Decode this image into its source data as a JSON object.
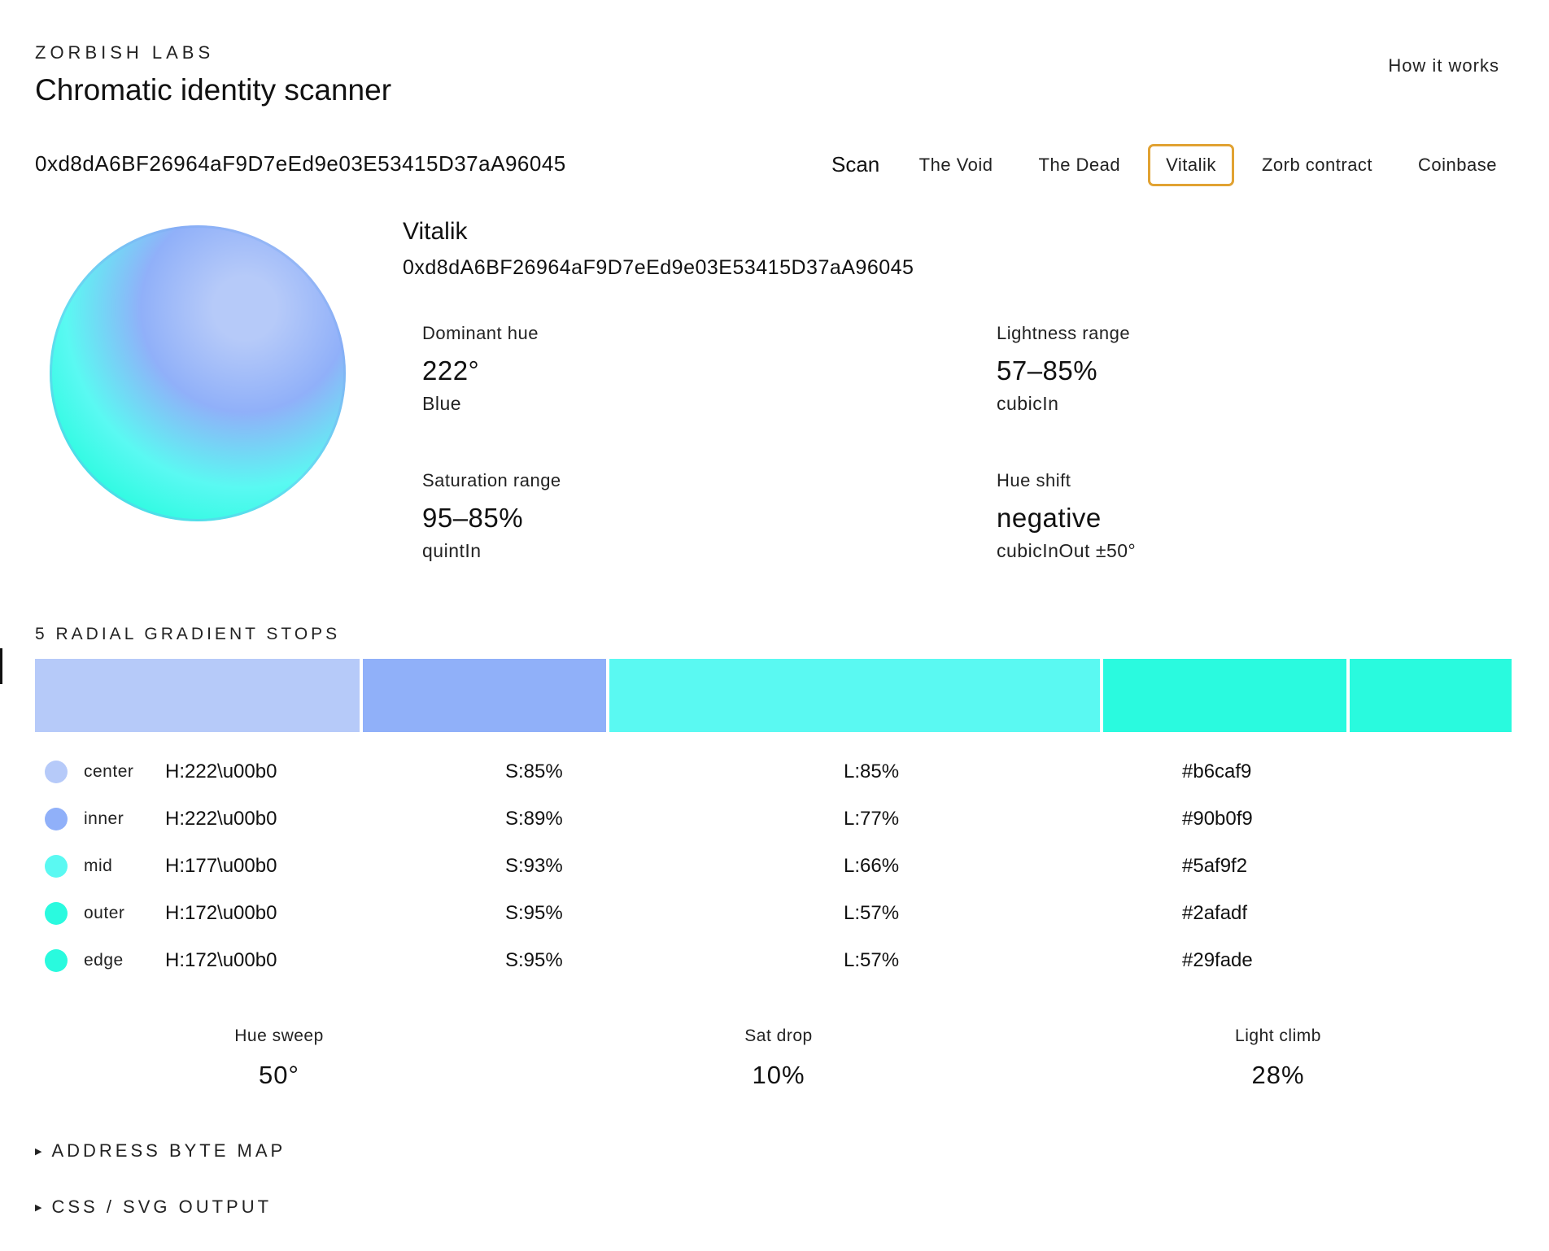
{
  "header": {
    "brand": "ZORBISH LABS",
    "title": "Chromatic identity scanner",
    "how_it_works": "How it works"
  },
  "scan": {
    "address_value": "0xd8dA6BF26964aF9D7eEd9e03E53415D37aA96045",
    "button_label": "Scan"
  },
  "presets": [
    {
      "label": "The Void",
      "active": false
    },
    {
      "label": "The Dead",
      "active": false
    },
    {
      "label": "Vitalik",
      "active": true
    },
    {
      "label": "Zorb contract",
      "active": false
    },
    {
      "label": "Coinbase",
      "active": false
    }
  ],
  "profile": {
    "name": "Vitalik",
    "address": "0xd8dA6BF26964aF9D7eEd9e03E53415D37aA96045"
  },
  "stats": {
    "dominant_hue": {
      "label": "Dominant hue",
      "value": "222°",
      "sub": "Blue"
    },
    "lightness_range": {
      "label": "Lightness range",
      "value": "57–85%",
      "sub": "cubicIn"
    },
    "saturation_range": {
      "label": "Saturation range",
      "value": "95–85%",
      "sub": "quintIn"
    },
    "hue_shift": {
      "label": "Hue shift",
      "value": "negative",
      "sub": "cubicInOut ±50°"
    }
  },
  "stops_section": {
    "title": "5 RADIAL GRADIENT STOPS"
  },
  "stops": [
    {
      "name": "center",
      "h": "H:222\\u00b0",
      "s": "S:85%",
      "l": "L:85%",
      "hex": "#b6caf9",
      "color": "#b6caf9"
    },
    {
      "name": "inner",
      "h": "H:222\\u00b0",
      "s": "S:89%",
      "l": "L:77%",
      "hex": "#90b0f9",
      "color": "#90b0f9"
    },
    {
      "name": "mid",
      "h": "H:177\\u00b0",
      "s": "S:93%",
      "l": "L:66%",
      "hex": "#5af9f2",
      "color": "#5af9f2"
    },
    {
      "name": "outer",
      "h": "H:172\\u00b0",
      "s": "S:95%",
      "l": "L:57%",
      "hex": "#2afadf",
      "color": "#2afadf"
    },
    {
      "name": "edge",
      "h": "H:172\\u00b0",
      "s": "S:95%",
      "l": "L:57%",
      "hex": "#29fade",
      "color": "#29fade"
    }
  ],
  "stop_bar_weights": [
    0.22,
    0.165,
    0.333,
    0.165,
    0.11
  ],
  "metrics": {
    "hue_sweep": {
      "label": "Hue sweep",
      "value": "50°"
    },
    "sat_drop": {
      "label": "Sat drop",
      "value": "10%"
    },
    "light_climb": {
      "label": "Light climb",
      "value": "28%"
    }
  },
  "collapsibles": {
    "byte_map": "ADDRESS BYTE MAP",
    "output": "CSS / SVG OUTPUT"
  },
  "colors": {
    "active_preset_border": "#e1a232"
  }
}
